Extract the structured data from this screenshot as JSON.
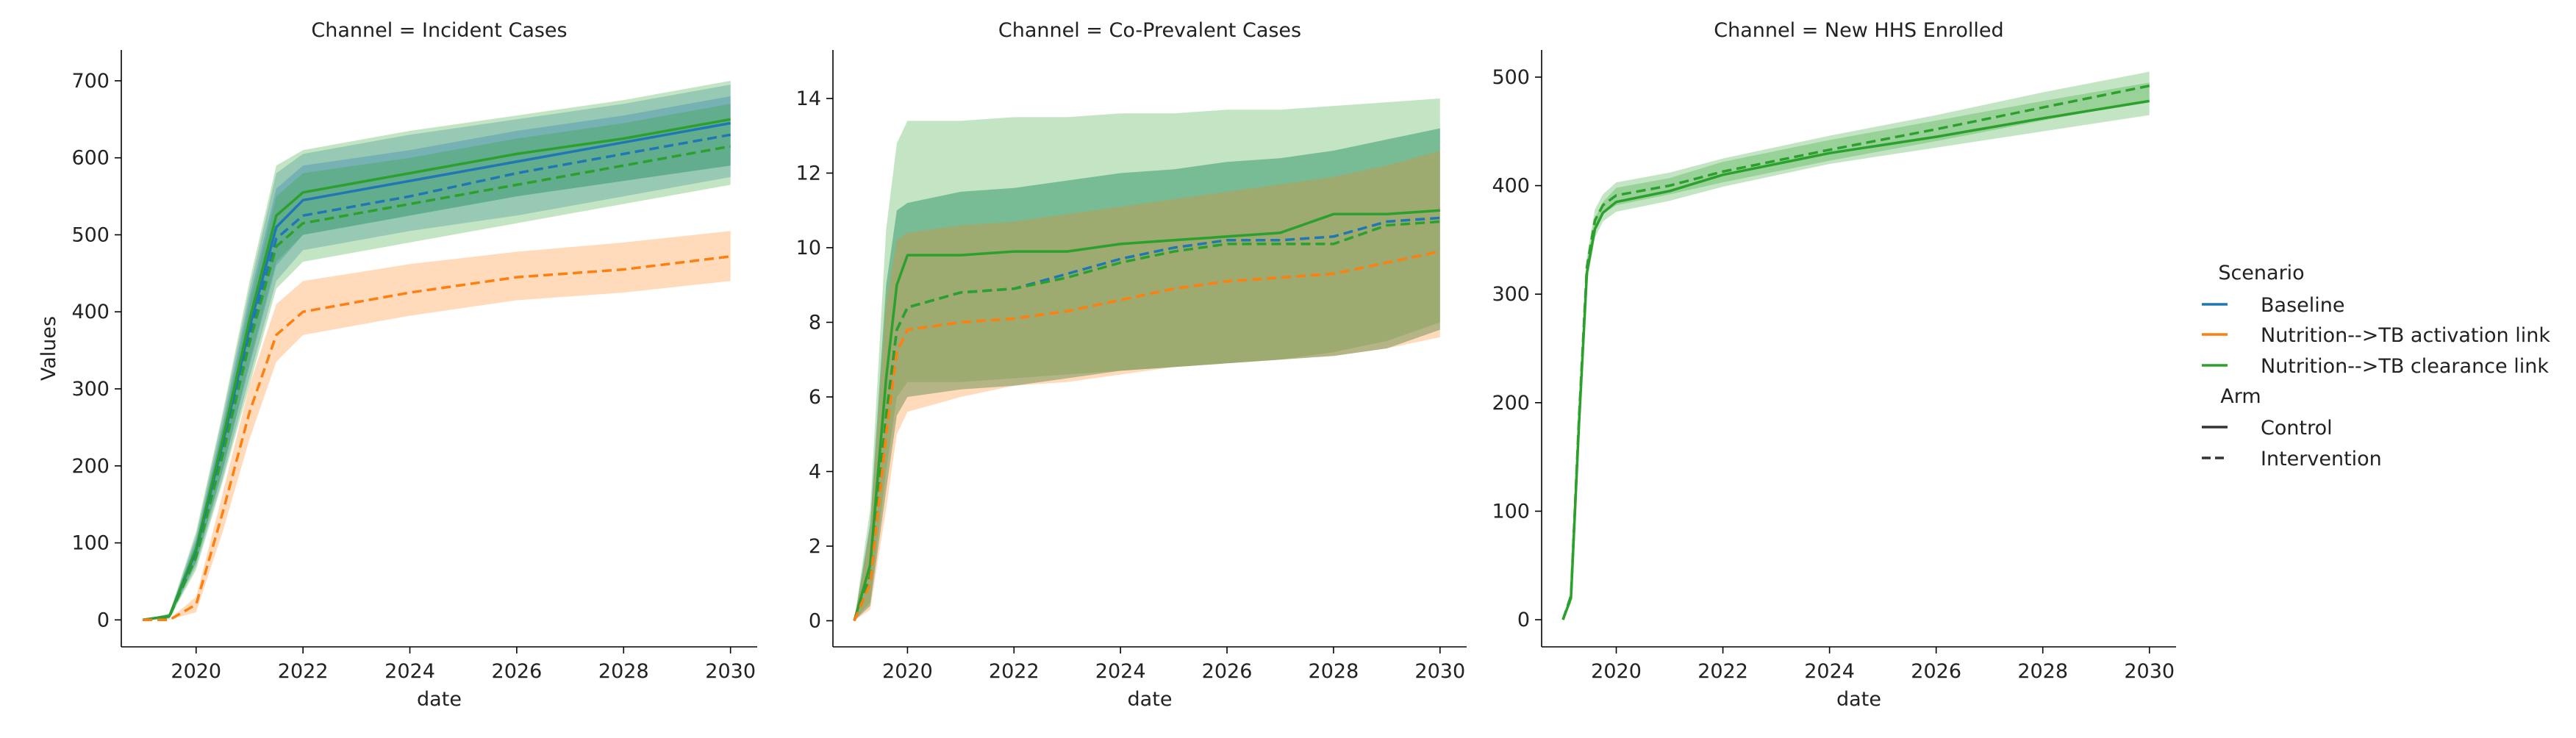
{
  "chart_data": {
    "type": "line",
    "ylabel": "Values",
    "colors": {
      "Baseline": "#1f77b4",
      "Nutrition-->TB activation link": "#ff7f0e",
      "Nutrition-->TB clearance link": "#2ca02c"
    },
    "legend": {
      "placement": "right",
      "scenario_title": "Scenario",
      "scenarios": [
        "Baseline",
        "Nutrition-->TB activation link",
        "Nutrition-->TB clearance link"
      ],
      "arm_title": "Arm",
      "arms": [
        {
          "name": "Control",
          "style": "solid"
        },
        {
          "name": "Intervention",
          "style": "dashed"
        }
      ]
    },
    "panels": [
      {
        "title": "Channel = Incident Cases",
        "xlabel": "date",
        "xlim": [
          2018.6,
          2030.5
        ],
        "xticks": [
          2020,
          2022,
          2024,
          2026,
          2028,
          2030
        ],
        "ylim": [
          -35,
          740
        ],
        "yticks": [
          0,
          100,
          200,
          300,
          400,
          500,
          600,
          700
        ],
        "series": [
          {
            "scenario": "Baseline",
            "arm": "Control",
            "x": [
              2019,
              2019.5,
              2020,
              2020.5,
              2021,
              2021.5,
              2022,
              2024,
              2026,
              2028,
              2030
            ],
            "y": [
              0,
              5,
              90,
              230,
              380,
              510,
              545,
              570,
              595,
              620,
              645
            ],
            "lower": [
              0,
              2,
              75,
              195,
              330,
              460,
              500,
              525,
              550,
              570,
              590
            ],
            "upper": [
              0,
              8,
              110,
              265,
              430,
              580,
              605,
              630,
              650,
              670,
              695
            ]
          },
          {
            "scenario": "Nutrition-->TB clearance link",
            "arm": "Control",
            "x": [
              2019,
              2019.5,
              2020,
              2020.5,
              2021,
              2021.5,
              2022,
              2024,
              2026,
              2028,
              2030
            ],
            "y": [
              0,
              5,
              92,
              235,
              390,
              525,
              555,
              580,
              605,
              625,
              650
            ],
            "lower": [
              0,
              2,
              75,
              195,
              335,
              465,
              500,
              525,
              550,
              570,
              590
            ],
            "upper": [
              0,
              8,
              115,
              270,
              440,
              590,
              610,
              635,
              655,
              675,
              700
            ]
          },
          {
            "scenario": "Baseline",
            "arm": "Intervention",
            "x": [
              2019,
              2019.5,
              2020,
              2020.5,
              2021,
              2021.5,
              2022,
              2024,
              2026,
              2028,
              2030
            ],
            "y": [
              0,
              4,
              85,
              220,
              370,
              495,
              525,
              550,
              580,
              605,
              630
            ],
            "lower": [
              0,
              2,
              70,
              185,
              315,
              440,
              480,
              505,
              525,
              550,
              575
            ],
            "upper": [
              0,
              7,
              105,
              255,
              420,
              560,
              590,
              610,
              635,
              655,
              680
            ]
          },
          {
            "scenario": "Nutrition-->TB clearance link",
            "arm": "Intervention",
            "x": [
              2019,
              2019.5,
              2020,
              2020.5,
              2021,
              2021.5,
              2022,
              2024,
              2026,
              2028,
              2030
            ],
            "y": [
              0,
              4,
              82,
              215,
              360,
              485,
              515,
              540,
              565,
              590,
              615
            ],
            "lower": [
              0,
              2,
              65,
              180,
              305,
              430,
              465,
              490,
              515,
              540,
              565
            ],
            "upper": [
              0,
              7,
              100,
              250,
              410,
              550,
              580,
              600,
              625,
              645,
              670
            ]
          },
          {
            "scenario": "Nutrition-->TB activation link",
            "arm": "Intervention",
            "x": [
              2019,
              2019.5,
              2020,
              2020.5,
              2021,
              2021.5,
              2022,
              2024,
              2026,
              2028,
              2030
            ],
            "y": [
              0,
              0,
              20,
              140,
              270,
              370,
              400,
              425,
              445,
              455,
              472
            ],
            "lower": [
              0,
              0,
              10,
              115,
              235,
              335,
              370,
              395,
              415,
              425,
              440
            ],
            "upper": [
              0,
              1,
              30,
              165,
              305,
              410,
              440,
              462,
              478,
              490,
              505
            ]
          }
        ]
      },
      {
        "title": "Channel = Co-Prevalent Cases",
        "xlabel": "date",
        "xlim": [
          2018.6,
          2030.5
        ],
        "xticks": [
          2020,
          2022,
          2024,
          2026,
          2028,
          2030
        ],
        "ylim": [
          -0.7,
          15.3
        ],
        "yticks": [
          0,
          2,
          4,
          6,
          8,
          10,
          12,
          14
        ],
        "series": [
          {
            "scenario": "Nutrition-->TB clearance link",
            "arm": "Control",
            "x": [
              2019,
              2019.3,
              2019.6,
              2019.8,
              2020,
              2021,
              2022,
              2023,
              2024,
              2025,
              2026,
              2027,
              2028,
              2029,
              2030
            ],
            "y": [
              0,
              1.5,
              6.5,
              9.0,
              9.8,
              9.8,
              9.9,
              9.9,
              10.1,
              10.2,
              10.3,
              10.4,
              10.9,
              10.9,
              11.0
            ],
            "lower": [
              0,
              0.5,
              4.0,
              6.0,
              6.4,
              6.4,
              6.5,
              6.6,
              6.7,
              6.8,
              6.9,
              7.0,
              7.2,
              7.5,
              8.0
            ],
            "upper": [
              0,
              3.0,
              10.5,
              12.8,
              13.4,
              13.4,
              13.5,
              13.5,
              13.6,
              13.6,
              13.7,
              13.7,
              13.8,
              13.9,
              14.0
            ]
          },
          {
            "scenario": "Baseline",
            "arm": "Intervention",
            "x": [
              2019,
              2019.3,
              2019.6,
              2019.8,
              2020,
              2021,
              2022,
              2023,
              2024,
              2025,
              2026,
              2027,
              2028,
              2029,
              2030
            ],
            "y": [
              0,
              1.2,
              5.5,
              7.8,
              8.4,
              8.8,
              8.9,
              9.3,
              9.7,
              10.0,
              10.2,
              10.2,
              10.3,
              10.7,
              10.8
            ],
            "lower": [
              0,
              0.4,
              3.5,
              5.5,
              6.0,
              6.2,
              6.3,
              6.5,
              6.7,
              6.8,
              6.9,
              7.0,
              7.1,
              7.3,
              7.8
            ],
            "upper": [
              0,
              2.6,
              9.0,
              11.0,
              11.2,
              11.5,
              11.6,
              11.8,
              12.0,
              12.1,
              12.3,
              12.4,
              12.6,
              12.9,
              13.2
            ]
          },
          {
            "scenario": "Nutrition-->TB clearance link",
            "arm": "Intervention",
            "x": [
              2019,
              2019.3,
              2019.6,
              2019.8,
              2020,
              2021,
              2022,
              2023,
              2024,
              2025,
              2026,
              2027,
              2028,
              2029,
              2030
            ],
            "y": [
              0,
              1.2,
              5.5,
              7.8,
              8.4,
              8.8,
              8.9,
              9.2,
              9.6,
              9.9,
              10.1,
              10.1,
              10.1,
              10.6,
              10.7
            ],
            "lower": [
              0,
              0.4,
              3.5,
              5.5,
              6.0,
              6.2,
              6.3,
              6.5,
              6.7,
              6.8,
              6.9,
              7.0,
              7.1,
              7.3,
              7.8
            ],
            "upper": [
              0,
              2.6,
              9.0,
              11.0,
              11.2,
              11.5,
              11.6,
              11.8,
              12.0,
              12.1,
              12.3,
              12.4,
              12.6,
              12.9,
              13.2
            ]
          },
          {
            "scenario": "Nutrition-->TB activation link",
            "arm": "Intervention",
            "x": [
              2019,
              2019.3,
              2019.6,
              2019.8,
              2020,
              2021,
              2022,
              2023,
              2024,
              2025,
              2026,
              2027,
              2028,
              2029,
              2030
            ],
            "y": [
              0,
              1.0,
              5.0,
              7.2,
              7.8,
              8.0,
              8.1,
              8.3,
              8.6,
              8.9,
              9.1,
              9.2,
              9.3,
              9.6,
              9.9
            ],
            "lower": [
              0,
              0.3,
              3.0,
              5.0,
              5.6,
              6.0,
              6.3,
              6.4,
              6.6,
              6.8,
              6.9,
              7.0,
              7.1,
              7.3,
              7.6
            ],
            "upper": [
              0,
              2.4,
              8.5,
              10.2,
              10.4,
              10.6,
              10.7,
              10.9,
              11.1,
              11.3,
              11.5,
              11.7,
              11.9,
              12.2,
              12.6
            ]
          }
        ]
      },
      {
        "title": "Channel = New HHS Enrolled",
        "xlabel": "date",
        "xlim": [
          2018.6,
          2030.5
        ],
        "xticks": [
          2020,
          2022,
          2024,
          2026,
          2028,
          2030
        ],
        "ylim": [
          -25,
          525
        ],
        "yticks": [
          0,
          100,
          200,
          300,
          400,
          500
        ],
        "series": [
          {
            "scenario": "Nutrition-->TB clearance link",
            "arm": "Control",
            "x": [
              2019,
              2019.15,
              2019.3,
              2019.45,
              2019.6,
              2019.75,
              2020,
              2021,
              2022,
              2024,
              2026,
              2028,
              2030
            ],
            "y": [
              0,
              20,
              180,
              320,
              360,
              375,
              385,
              395,
              410,
              430,
              445,
              462,
              478
            ],
            "lower": [
              0,
              15,
              170,
              310,
              352,
              367,
              376,
              386,
              399,
              420,
              435,
              450,
              465
            ],
            "upper": [
              0,
              25,
              190,
              330,
              370,
              385,
              398,
              407,
              422,
              442,
              460,
              478,
              495
            ]
          },
          {
            "scenario": "Nutrition-->TB clearance link",
            "arm": "Intervention",
            "x": [
              2019,
              2019.15,
              2019.3,
              2019.45,
              2019.6,
              2019.75,
              2020,
              2021,
              2022,
              2024,
              2026,
              2028,
              2030
            ],
            "y": [
              0,
              22,
              185,
              325,
              368,
              382,
              391,
              400,
              413,
              433,
              452,
              472,
              492
            ],
            "lower": [
              0,
              17,
              175,
              315,
              360,
              374,
              382,
              392,
              403,
              423,
              441,
              460,
              478
            ],
            "upper": [
              0,
              27,
              195,
              335,
              378,
              392,
              403,
              412,
              425,
              446,
              465,
              486,
              505
            ]
          }
        ]
      }
    ]
  }
}
